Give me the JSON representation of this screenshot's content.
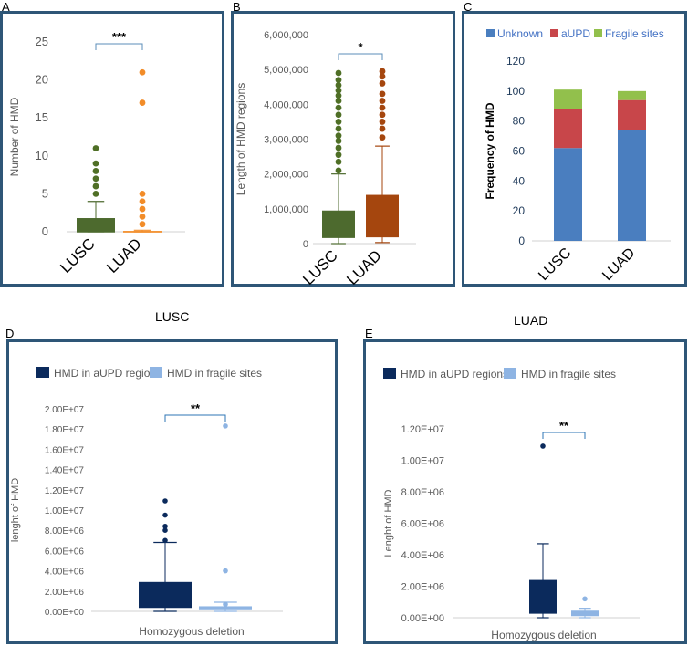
{
  "colors": {
    "frame": "#2e5677",
    "lusc_green": "#4d6a2e",
    "lusc_point": "#4f6f26",
    "luad_orange": "#f28c28",
    "luad_brown": "#a5460e",
    "unknown": "#4a7ebf",
    "aupd": "#c8464a",
    "fragile": "#92c04c",
    "navy": "#0b2a5c",
    "lightblue": "#8eb4e3",
    "axis_text": "#595959"
  },
  "chart_data": [
    {
      "id": "A",
      "type": "box",
      "panel_label": "A",
      "ylabel": "Number of HMD",
      "yticks": [
        0,
        5,
        10,
        15,
        20,
        25
      ],
      "ylim": [
        0,
        25
      ],
      "categories": [
        "LUSC",
        "LUAD"
      ],
      "boxes": [
        {
          "name": "LUSC",
          "q1": 0,
          "median": 0,
          "q3": 1.8,
          "whisker_low": 0,
          "whisker_high": 4,
          "outliers": [
            5,
            6,
            7,
            8,
            9,
            11
          ]
        },
        {
          "name": "LUAD",
          "q1": 0,
          "median": 0,
          "q3": 0.1,
          "whisker_low": 0,
          "whisker_high": 0.2,
          "outliers": [
            1,
            2,
            3,
            4,
            5,
            17,
            21
          ]
        }
      ],
      "significance": "***"
    },
    {
      "id": "B",
      "type": "box",
      "panel_label": "B",
      "ylabel": "Length of HMD regions",
      "yticks": [
        "0",
        "1,000,000",
        "2,000,000",
        "3,000,000",
        "4,000,000",
        "5,000,000",
        "6,000,000"
      ],
      "ylim": [
        0,
        6000000
      ],
      "categories": [
        "LUSC",
        "LUAD"
      ],
      "boxes": [
        {
          "name": "LUSC",
          "q1": 180000,
          "median": 180000,
          "q3": 950000,
          "whisker_low": 0,
          "whisker_high": 2000000,
          "outliers": [
            2100000,
            2350000,
            2550000,
            2750000,
            2950000,
            3100000,
            3300000,
            3500000,
            3700000,
            3900000,
            4100000,
            4250000,
            4400000,
            4550000,
            4700000,
            4900000
          ]
        },
        {
          "name": "LUAD",
          "q1": 200000,
          "median": 200000,
          "q3": 1400000,
          "whisker_low": 30000,
          "whisker_high": 2800000,
          "outliers": [
            3050000,
            3300000,
            3500000,
            3700000,
            3900000,
            4100000,
            4300000,
            4600000,
            4800000,
            4950000
          ]
        }
      ],
      "significance": "*"
    },
    {
      "id": "C",
      "type": "bar",
      "stacked": true,
      "panel_label": "C",
      "ylabel": "Frequency of HMD",
      "yticks": [
        0,
        20,
        40,
        60,
        80,
        100,
        120
      ],
      "ylim": [
        0,
        120
      ],
      "categories": [
        "LUSC",
        "LUAD"
      ],
      "series": [
        {
          "name": "Unknown",
          "values": [
            62,
            74
          ]
        },
        {
          "name": "aUPD",
          "values": [
            26,
            20
          ]
        },
        {
          "name": "Fragile sites",
          "values": [
            13,
            6
          ]
        }
      ],
      "legend_position": "top"
    },
    {
      "id": "D",
      "type": "box",
      "panel_label": "D",
      "title": "LUSC",
      "ylabel": "lenght of HMD",
      "xlabel": "Homozygous deletion",
      "yticks": [
        "0.00E+00",
        "2.00E+06",
        "4.00E+06",
        "6.00E+06",
        "8.00E+06",
        "1.00E+07",
        "1.20E+07",
        "1.40E+07",
        "1.60E+07",
        "1.80E+07",
        "2.00E+07"
      ],
      "ylim": [
        0,
        20000000
      ],
      "legend": [
        "HMD in aUPD region",
        "HMD in fragile sites"
      ],
      "boxes": [
        {
          "name": "HMD in aUPD region",
          "q1": 400000,
          "median": 400000,
          "q3": 2900000,
          "whisker_low": 0,
          "whisker_high": 6800000,
          "outliers": [
            7000000,
            8000000,
            8400000,
            9500000,
            10900000
          ]
        },
        {
          "name": "HMD in fragile sites",
          "q1": 200000,
          "median": 300000,
          "q3": 500000,
          "whisker_low": 0,
          "whisker_high": 900000,
          "outliers": [
            700000,
            4000000,
            18300000
          ]
        }
      ],
      "significance": "**"
    },
    {
      "id": "E",
      "type": "box",
      "panel_label": "E",
      "title": "LUAD",
      "ylabel": "Lenght of HMD",
      "xlabel": "Homozygous deletion",
      "yticks": [
        "0.00E+00",
        "2.00E+06",
        "4.00E+06",
        "6.00E+06",
        "8.00E+06",
        "1.00E+07",
        "1.20E+07"
      ],
      "ylim": [
        0,
        12000000
      ],
      "legend": [
        "HMD in aUPD regions",
        "HMD in fragile sites"
      ],
      "boxes": [
        {
          "name": "HMD in aUPD regions",
          "q1": 300000,
          "median": 300000,
          "q3": 2400000,
          "whisker_low": 0,
          "whisker_high": 4700000,
          "outliers": [
            10900000
          ]
        },
        {
          "name": "HMD in fragile sites",
          "q1": 100000,
          "median": 250000,
          "q3": 450000,
          "whisker_low": 0,
          "whisker_high": 600000,
          "outliers": [
            1200000
          ]
        }
      ],
      "significance": "**"
    }
  ]
}
